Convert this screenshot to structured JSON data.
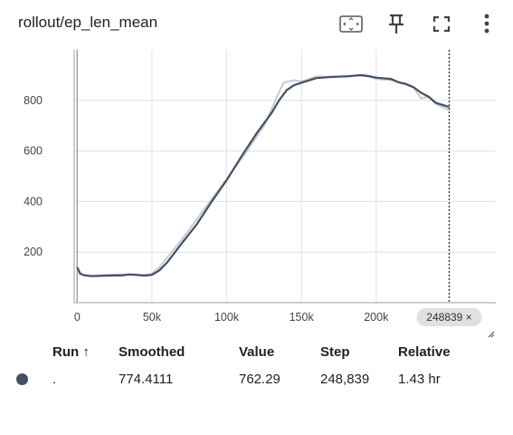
{
  "header": {
    "title": "rollout/ep_len_mean",
    "icons": [
      "fit-domain-icon",
      "pin-icon",
      "fullscreen-icon",
      "more-vert-icon"
    ]
  },
  "chart_data": {
    "type": "line",
    "ylim": [
      0,
      1000
    ],
    "xlim": [
      -2000,
      280000
    ],
    "y_ticks": [
      200,
      400,
      600,
      800
    ],
    "y_tick_labels": [
      "200",
      "400",
      "600",
      "800"
    ],
    "x_ticks": [
      0,
      50000,
      100000,
      150000,
      200000
    ],
    "x_tick_labels": [
      "0",
      "50k",
      "100k",
      "150k",
      "200k"
    ],
    "grid": true,
    "step_marker": {
      "x": 248839,
      "label": "248839 ×"
    },
    "series": [
      {
        "role": "raw",
        "color": "#c7cbd1",
        "x": [
          0,
          2000,
          5000,
          10000,
          20000,
          30000,
          35000,
          40000,
          45000,
          50000,
          55000,
          70000,
          90000,
          110000,
          125000,
          138000,
          145000,
          150000,
          160000,
          170000,
          180000,
          190000,
          195000,
          200000,
          210000,
          220000,
          225000,
          230000,
          235000,
          240000,
          248839
        ],
        "y": [
          135,
          112,
          108,
          106,
          110,
          113,
          110,
          108,
          110,
          115,
          140,
          250,
          410,
          570,
          700,
          870,
          880,
          875,
          895,
          892,
          896,
          898,
          895,
          885,
          880,
          862,
          850,
          808,
          815,
          785,
          762
        ]
      },
      {
        "role": "smoothed",
        "color": "#425066",
        "x": [
          0,
          2000,
          5000,
          10000,
          20000,
          30000,
          35000,
          40000,
          45000,
          50000,
          55000,
          60000,
          70000,
          80000,
          90000,
          100000,
          110000,
          120000,
          130000,
          135000,
          140000,
          145000,
          150000,
          160000,
          170000,
          180000,
          190000,
          195000,
          200000,
          210000,
          215000,
          220000,
          225000,
          230000,
          235000,
          240000,
          248839
        ],
        "y": [
          140,
          115,
          108,
          105,
          107,
          108,
          112,
          110,
          107,
          110,
          128,
          158,
          235,
          310,
          400,
          485,
          580,
          670,
          750,
          800,
          840,
          860,
          870,
          888,
          893,
          895,
          900,
          896,
          890,
          885,
          872,
          865,
          852,
          830,
          815,
          790,
          774
        ]
      }
    ]
  },
  "runs_table": {
    "headers": [
      "Run ↑",
      "Smoothed",
      "Value",
      "Step",
      "Relative"
    ],
    "rows": [
      {
        "run": ".",
        "smoothed": "774.4111",
        "value": "762.29",
        "step": "248,839",
        "relative": "1.43 hr"
      }
    ]
  }
}
